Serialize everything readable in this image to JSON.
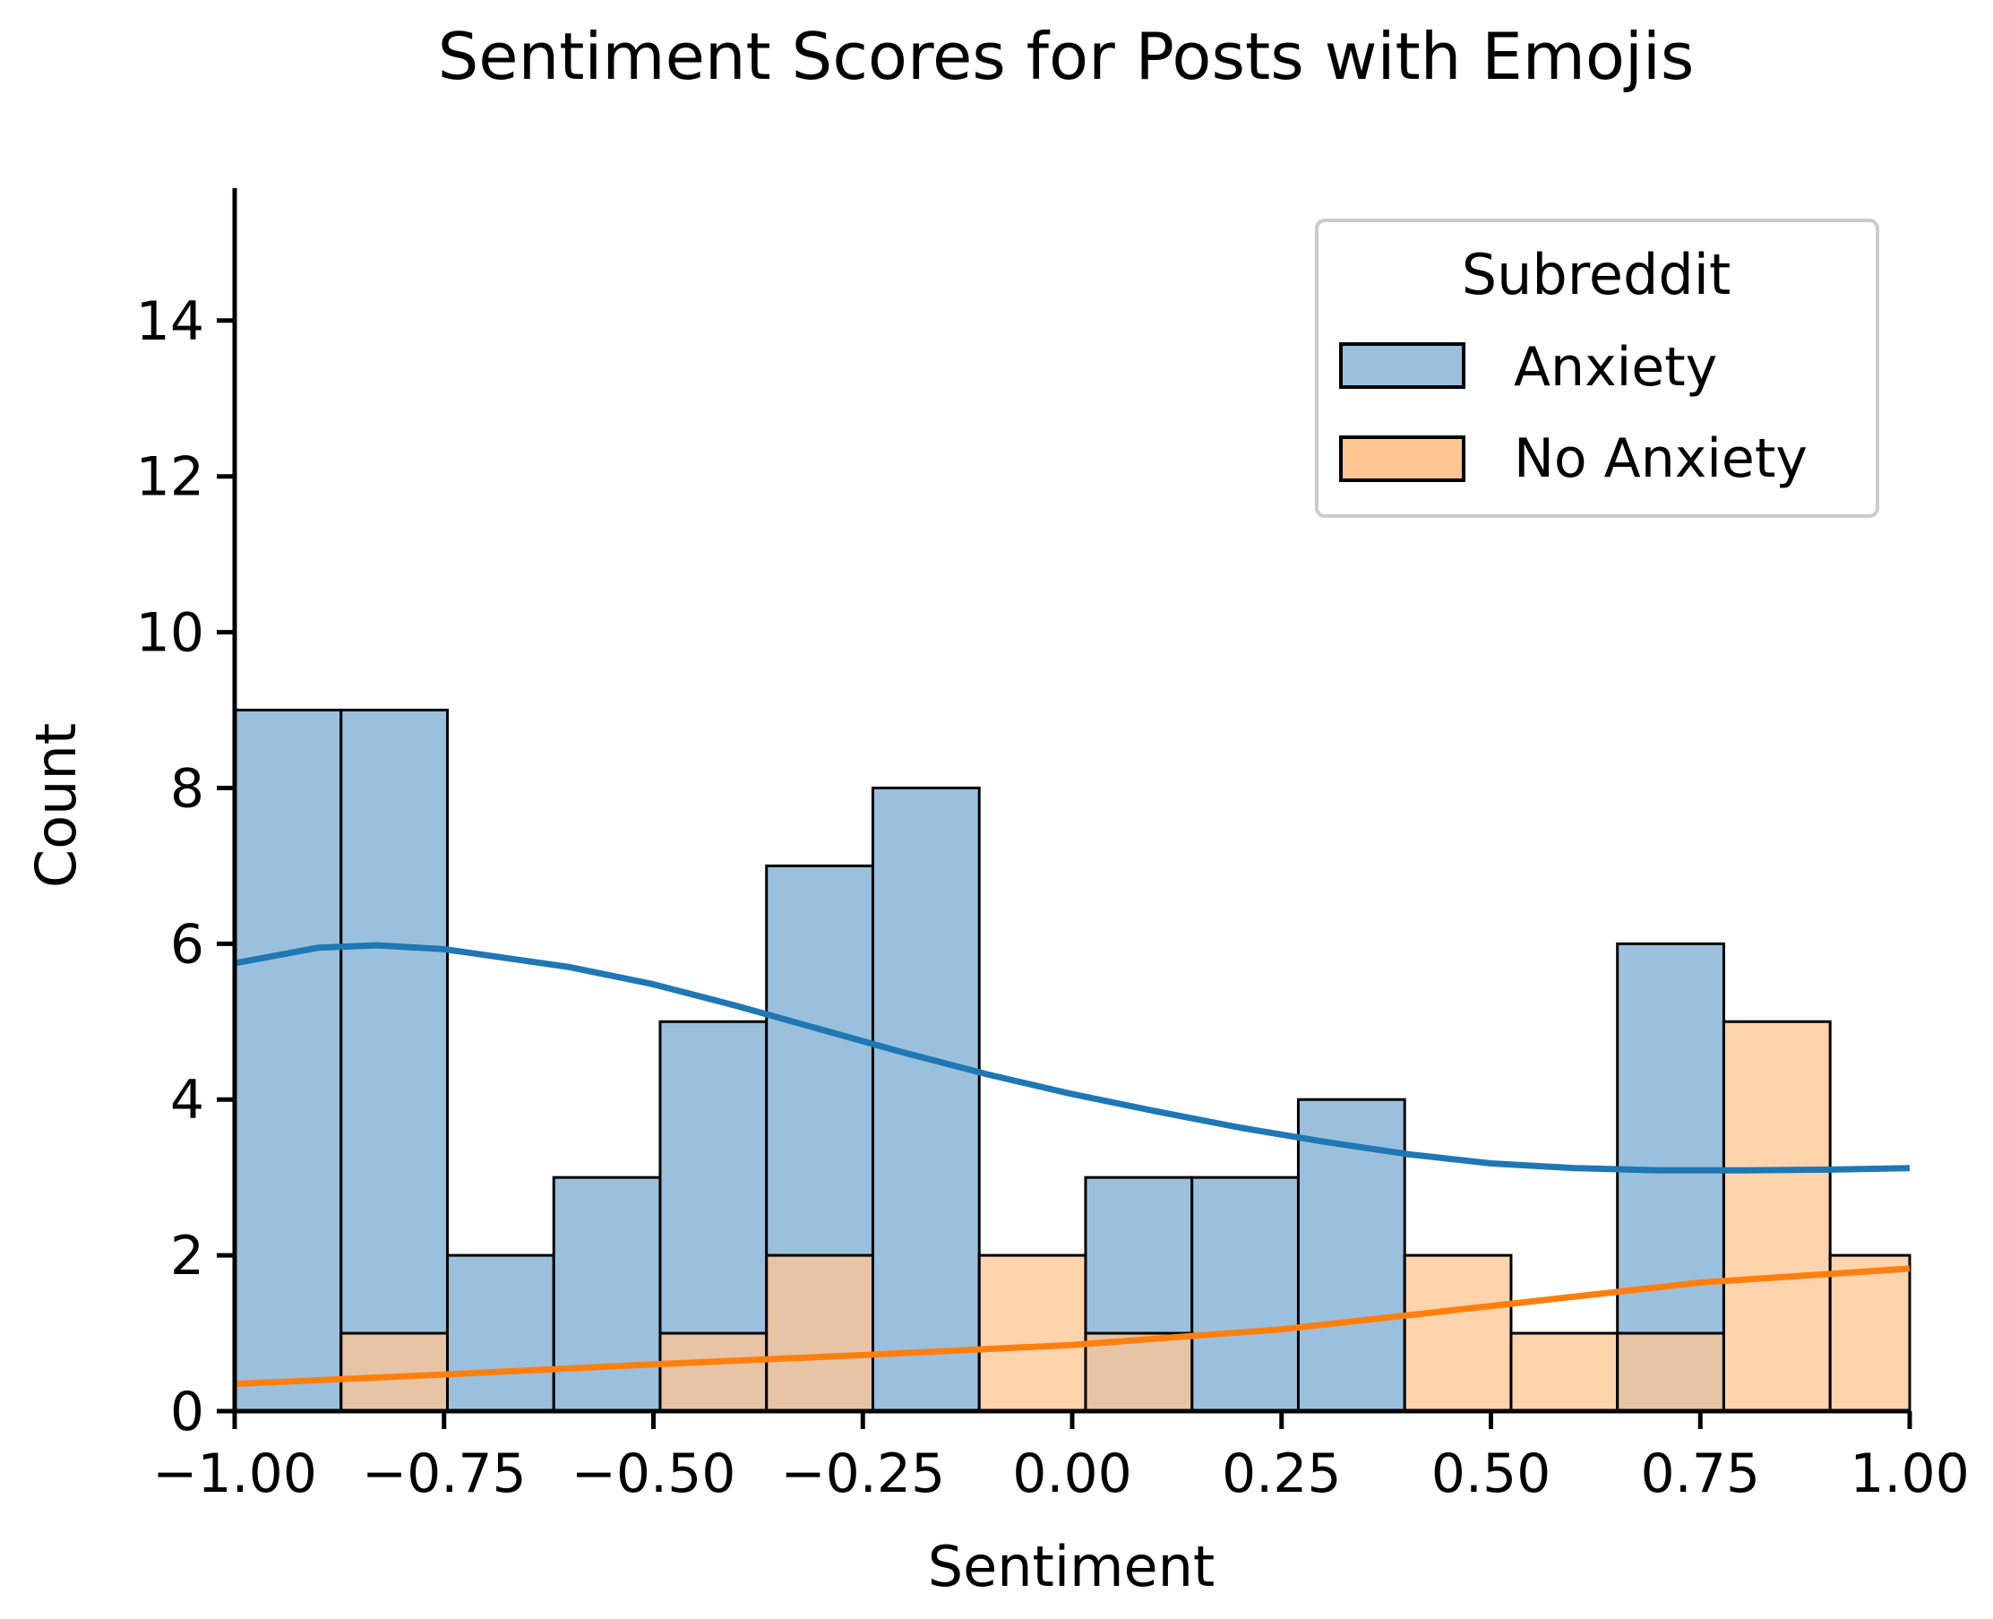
{
  "chart_data": {
    "type": "bar",
    "subtype": "overlaid histogram with KDE curves",
    "title": "Sentiment Scores for Posts with Emojis",
    "xlabel": "Sentiment",
    "ylabel": "Count",
    "xlim": [
      -1.0,
      1.0
    ],
    "ylim": [
      0,
      15.7
    ],
    "xticks": [
      -1.0,
      -0.75,
      -0.5,
      -0.25,
      0.0,
      0.25,
      0.5,
      0.75,
      1.0
    ],
    "xtick_labels": [
      "−1.00",
      "−0.75",
      "−0.50",
      "−0.25",
      "0.00",
      "0.25",
      "0.50",
      "0.75",
      "1.00"
    ],
    "yticks": [
      0,
      2,
      4,
      6,
      8,
      10,
      12,
      14
    ],
    "ytick_labels": [
      "0",
      "2",
      "4",
      "6",
      "8",
      "10",
      "12",
      "14"
    ],
    "bin_edges": [
      -1.0,
      -0.873,
      -0.746,
      -0.619,
      -0.492,
      -0.365,
      -0.238,
      -0.111,
      0.016,
      0.143,
      0.27,
      0.397,
      0.524,
      0.651,
      0.778,
      0.905,
      1.0
    ],
    "grid": false,
    "legend": {
      "title": "Subreddit",
      "position": "top-right"
    },
    "series": [
      {
        "name": "Anxiety",
        "fill": "#9bc0de",
        "line_color": "#1f77b4",
        "counts": [
          9,
          9,
          2,
          3,
          5,
          7,
          8,
          0,
          3,
          3,
          4,
          0,
          0,
          6,
          0,
          0
        ],
        "kde": {
          "x": [
            -1.0,
            -0.9,
            -0.83,
            -0.75,
            -0.6,
            -0.5,
            -0.4,
            -0.3,
            -0.2,
            -0.1,
            0.0,
            0.1,
            0.2,
            0.3,
            0.4,
            0.5,
            0.6,
            0.7,
            0.75,
            0.8,
            0.9,
            1.0
          ],
          "y": [
            5.75,
            5.95,
            5.98,
            5.93,
            5.7,
            5.48,
            5.2,
            4.9,
            4.6,
            4.32,
            4.07,
            3.85,
            3.64,
            3.46,
            3.3,
            3.18,
            3.12,
            3.09,
            3.09,
            3.09,
            3.1,
            3.12
          ]
        }
      },
      {
        "name": "No Anxiety",
        "fill": "#ffc592",
        "line_color": "#ff7f0e",
        "counts": [
          0,
          1,
          0,
          0,
          1,
          2,
          0,
          2,
          1,
          0,
          0,
          2,
          1,
          1,
          5,
          2
        ],
        "kde": {
          "x": [
            -1.0,
            -0.75,
            -0.5,
            -0.25,
            0.0,
            0.25,
            0.5,
            0.75,
            1.0
          ],
          "y": [
            0.35,
            0.47,
            0.6,
            0.72,
            0.85,
            1.05,
            1.35,
            1.65,
            1.83
          ]
        }
      }
    ]
  }
}
